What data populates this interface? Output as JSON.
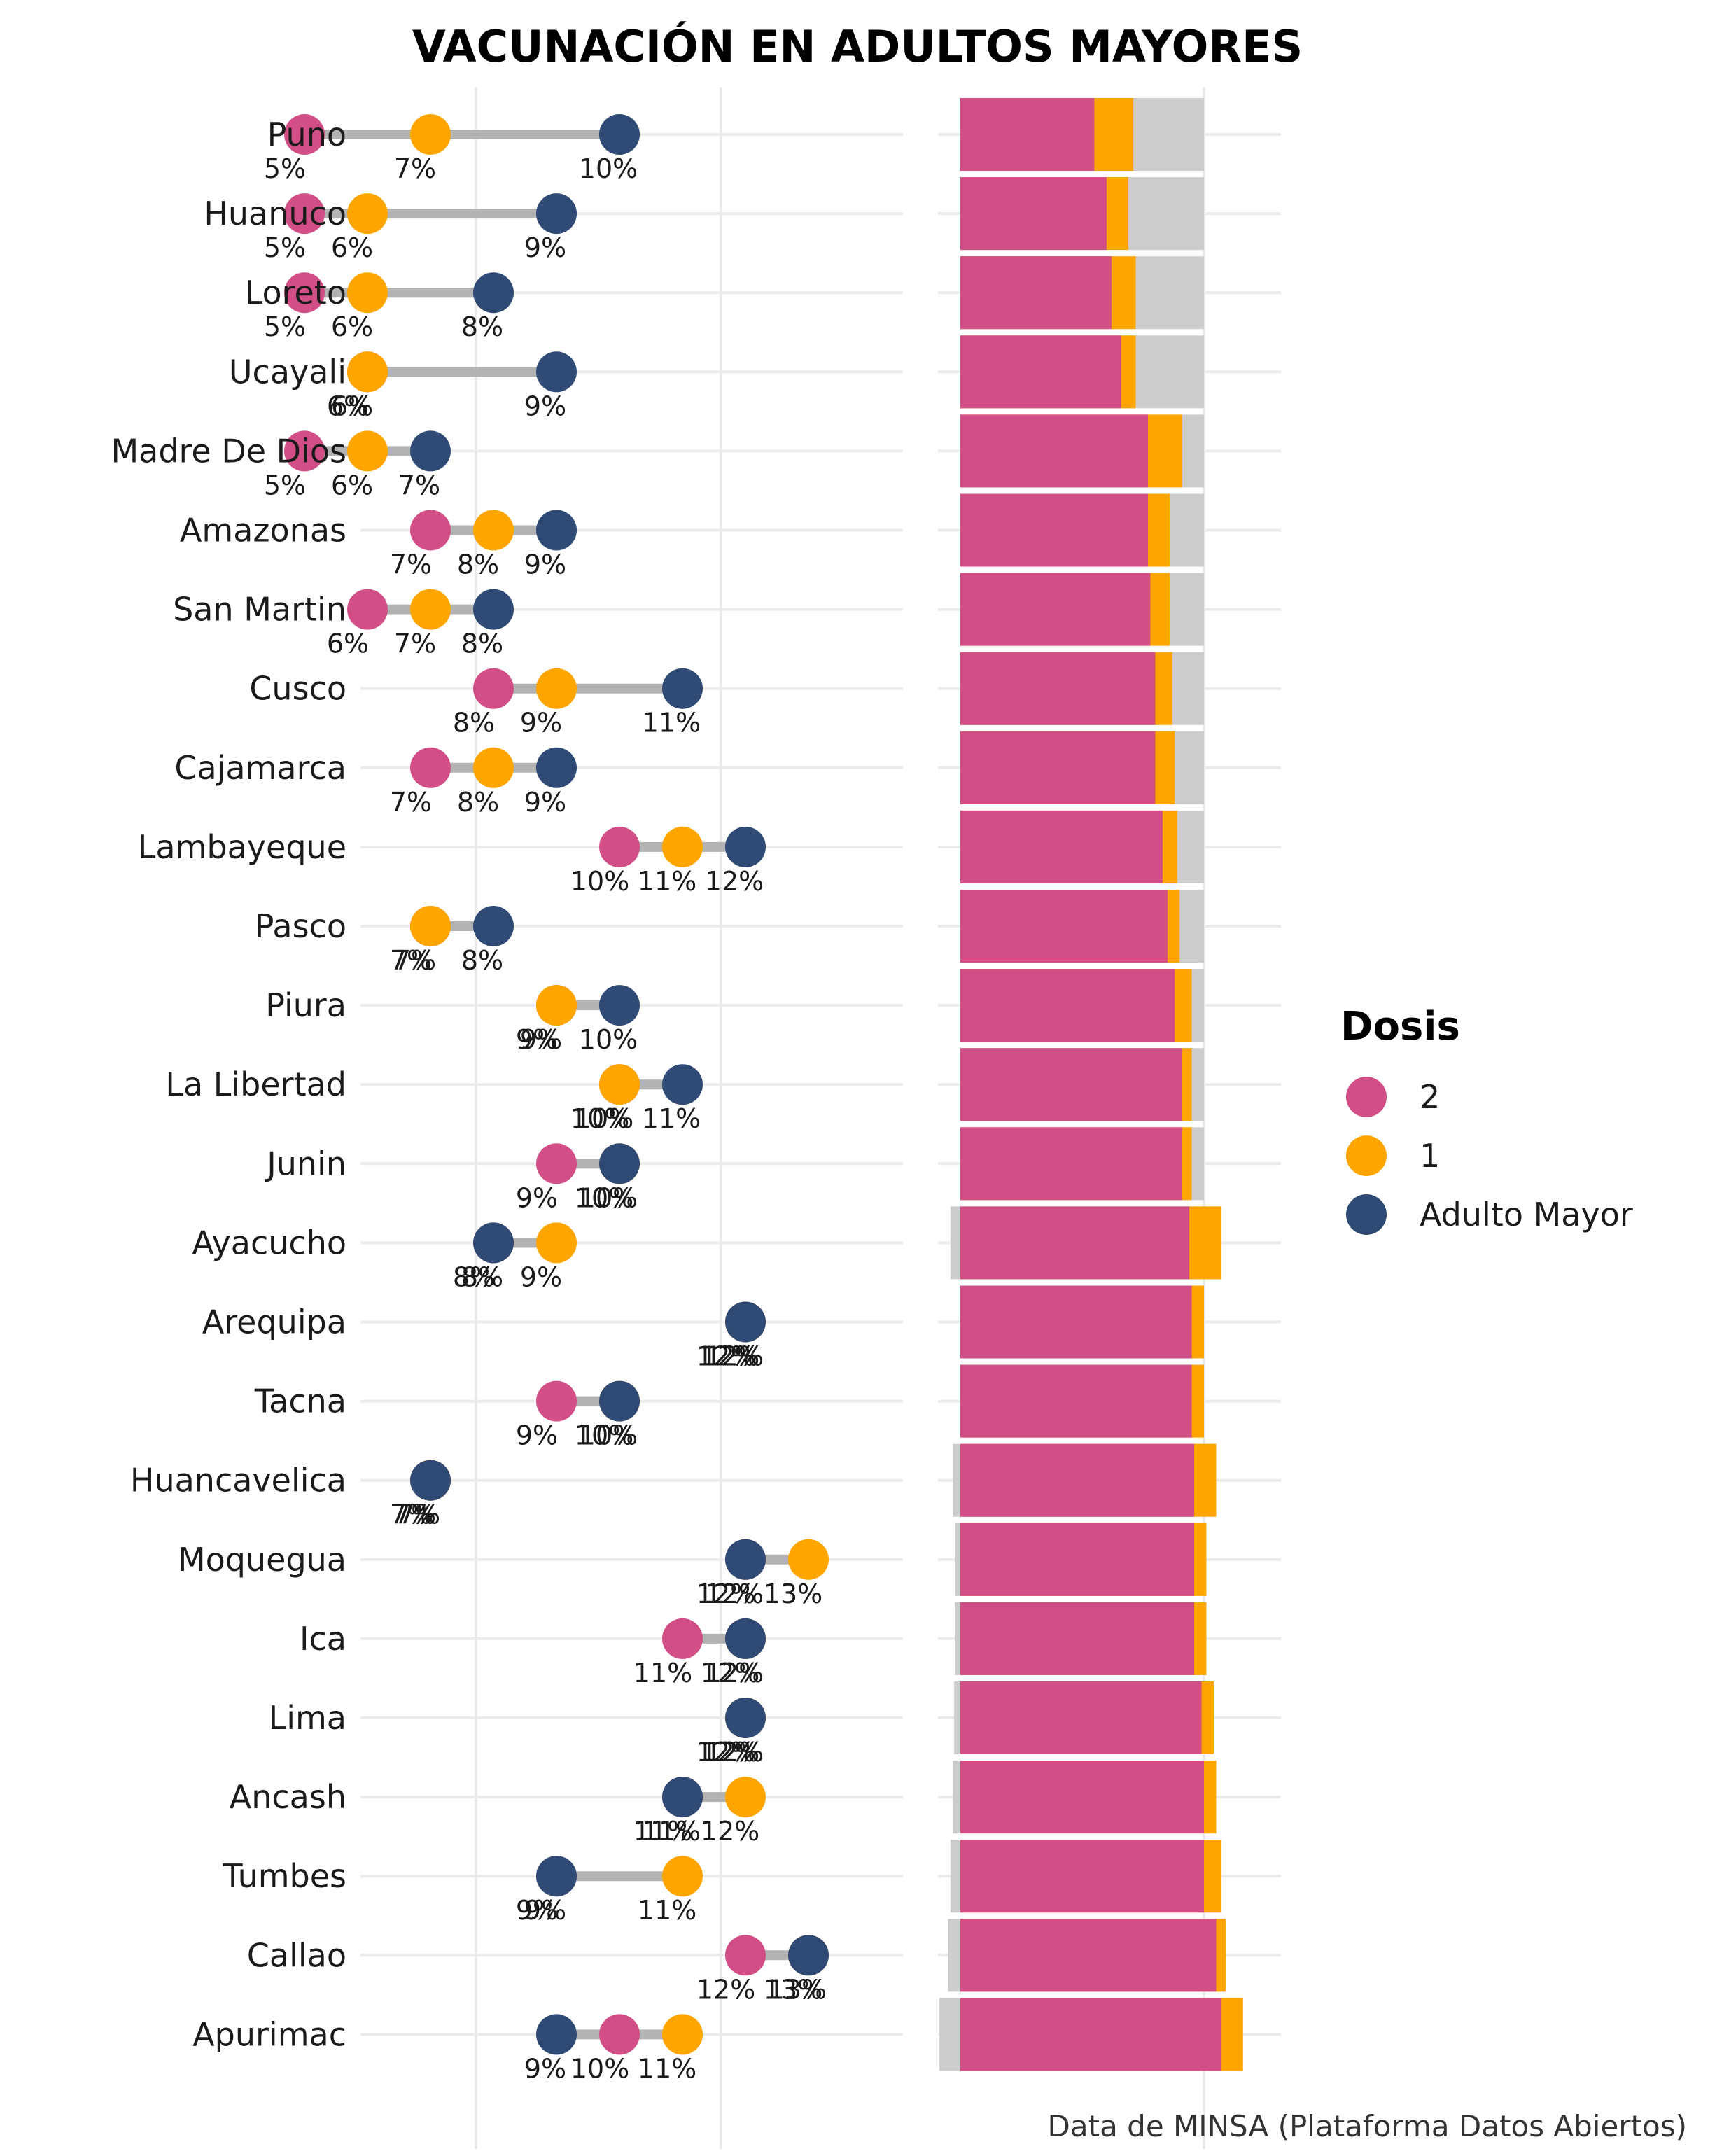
{
  "chart_data": {
    "type": "dumbbell_with_stacked_bar",
    "title": "VACUNACIÓN EN ADULTOS MAYORES",
    "caption": "Data de MINSA (Plataforma Datos Abiertos)",
    "legend": {
      "title": "Dosis",
      "position": "right",
      "items": [
        {
          "name": "2",
          "color": "#D14F86"
        },
        {
          "name": "1",
          "color": "#FFA500"
        },
        {
          "name": "Adulto Mayor",
          "color": "#2E4A75"
        }
      ]
    },
    "colors": {
      "dose2": "#D14F86",
      "dose1": "#FFA500",
      "adulto": "#2E4A75",
      "bar_bg": "#CCCCCC",
      "segment": "#B3B3B3",
      "grid": "#EBEBEB"
    },
    "unit": "%",
    "bar_note": "Adulto Mayor = 1.0",
    "regions": [
      {
        "name": "Puno",
        "dose2": 5,
        "dose1": 7,
        "adulto": 10,
        "bar_dose2": 0.55,
        "bar_dose1": 0.71
      },
      {
        "name": "Huanuco",
        "dose2": 5,
        "dose1": 6,
        "adulto": 9,
        "bar_dose2": 0.6,
        "bar_dose1": 0.69
      },
      {
        "name": "Loreto",
        "dose2": 5,
        "dose1": 6,
        "adulto": 8,
        "bar_dose2": 0.62,
        "bar_dose1": 0.72
      },
      {
        "name": "Ucayali",
        "dose2": 6,
        "dose1": 6,
        "adulto": 9,
        "bar_dose2": 0.66,
        "bar_dose1": 0.72
      },
      {
        "name": "Madre De Dios",
        "dose2": 5,
        "dose1": 6,
        "adulto": 7,
        "bar_dose2": 0.77,
        "bar_dose1": 0.91
      },
      {
        "name": "Amazonas",
        "dose2": 7,
        "dose1": 8,
        "adulto": 9,
        "bar_dose2": 0.77,
        "bar_dose1": 0.86
      },
      {
        "name": "San Martin",
        "dose2": 6,
        "dose1": 7,
        "adulto": 8,
        "bar_dose2": 0.78,
        "bar_dose1": 0.86
      },
      {
        "name": "Cusco",
        "dose2": 8,
        "dose1": 9,
        "adulto": 11,
        "bar_dose2": 0.8,
        "bar_dose1": 0.87
      },
      {
        "name": "Cajamarca",
        "dose2": 7,
        "dose1": 8,
        "adulto": 9,
        "bar_dose2": 0.8,
        "bar_dose1": 0.88
      },
      {
        "name": "Lambayeque",
        "dose2": 10,
        "dose1": 11,
        "adulto": 12,
        "bar_dose2": 0.83,
        "bar_dose1": 0.89
      },
      {
        "name": "Pasco",
        "dose2": 7,
        "dose1": 7,
        "adulto": 8,
        "bar_dose2": 0.85,
        "bar_dose1": 0.9
      },
      {
        "name": "Piura",
        "dose2": 9,
        "dose1": 9,
        "adulto": 10,
        "bar_dose2": 0.88,
        "bar_dose1": 0.95
      },
      {
        "name": "La Libertad",
        "dose2": 10,
        "dose1": 10,
        "adulto": 11,
        "bar_dose2": 0.91,
        "bar_dose1": 0.95
      },
      {
        "name": "Junin",
        "dose2": 9,
        "dose1": 10,
        "adulto": 10,
        "bar_dose2": 0.91,
        "bar_dose1": 0.95
      },
      {
        "name": "Ayacucho",
        "dose2": 8,
        "dose1": 9,
        "adulto": 8,
        "bar_dose2": 0.94,
        "bar_dose1": 1.07
      },
      {
        "name": "Arequipa",
        "dose2": 12,
        "dose1": 12,
        "adulto": 12,
        "bar_dose2": 0.95,
        "bar_dose1": 1.0
      },
      {
        "name": "Tacna",
        "dose2": 9,
        "dose1": 10,
        "adulto": 10,
        "bar_dose2": 0.95,
        "bar_dose1": 1.0
      },
      {
        "name": "Huancavelica",
        "dose2": 7,
        "dose1": 7,
        "adulto": 7,
        "bar_dose2": 0.96,
        "bar_dose1": 1.05
      },
      {
        "name": "Moquegua",
        "dose2": 12,
        "dose1": 13,
        "adulto": 12,
        "bar_dose2": 0.96,
        "bar_dose1": 1.01
      },
      {
        "name": "Ica",
        "dose2": 11,
        "dose1": 12,
        "adulto": 12,
        "bar_dose2": 0.96,
        "bar_dose1": 1.01
      },
      {
        "name": "Lima",
        "dose2": 12,
        "dose1": 12,
        "adulto": 12,
        "bar_dose2": 0.99,
        "bar_dose1": 1.04
      },
      {
        "name": "Ancash",
        "dose2": 11,
        "dose1": 12,
        "adulto": 11,
        "bar_dose2": 1.0,
        "bar_dose1": 1.05
      },
      {
        "name": "Tumbes",
        "dose2": 9,
        "dose1": 11,
        "adulto": 9,
        "bar_dose2": 1.0,
        "bar_dose1": 1.07
      },
      {
        "name": "Callao",
        "dose2": 12,
        "dose1": 13,
        "adulto": 13,
        "bar_dose2": 1.05,
        "bar_dose1": 1.09
      },
      {
        "name": "Apurimac",
        "dose2": 10,
        "dose1": 11,
        "adulto": 9,
        "bar_dose2": 1.07,
        "bar_dose1": 1.16
      }
    ]
  }
}
